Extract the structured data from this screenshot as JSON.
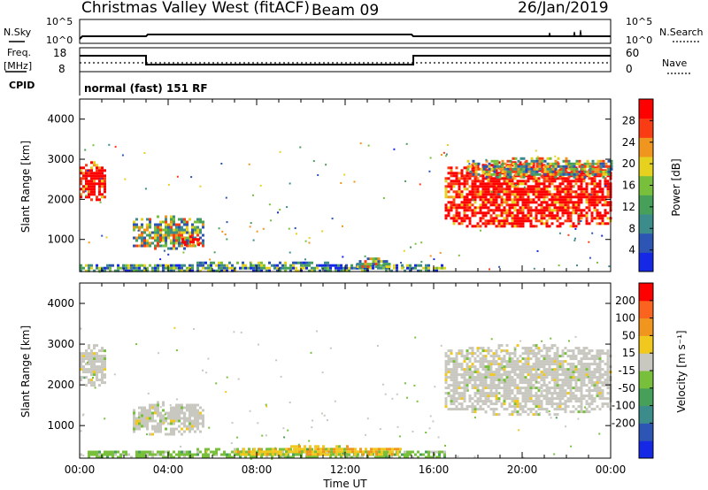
{
  "header": {
    "station": "Christmas Valley West (fitACF)",
    "beam": "Beam 09",
    "date": "26/Jan/2019"
  },
  "summary_panels": {
    "nsky_label": "N.Sky",
    "nsky_ticks": [
      "10^5",
      "10^0"
    ],
    "nsearch_label": "N.Search",
    "nsearch_ticks": [
      "10^5",
      "10^0"
    ],
    "freq_label_1": "Freq.",
    "freq_label_2": "[MHz]",
    "freq_ticks": [
      "18",
      "8"
    ],
    "nave_label": "Nave",
    "nave_ticks": [
      "60",
      "0"
    ],
    "cpid_label": "CPID",
    "cpid_value": "normal (fast) 151 RF"
  },
  "chart_data": [
    {
      "type": "heatmap",
      "name": "power",
      "xlabel": "",
      "ylabel": "Slant Range [km]",
      "x_range_hours": [
        0,
        24
      ],
      "y_range_km": [
        200,
        4500
      ],
      "yticks": [
        1000,
        2000,
        3000,
        4000
      ],
      "colorbar_label": "Power [dB]",
      "colorbar_ticks": [
        4,
        8,
        12,
        16,
        20,
        24,
        28
      ],
      "colorbar_range": [
        0,
        32
      ],
      "colorbar_colors": [
        "#1428e6",
        "#2d55b4",
        "#3c8c8c",
        "#46a05a",
        "#78c03c",
        "#e6d21e",
        "#f0961e",
        "#fa3c14",
        "#ff0000"
      ],
      "regions": [
        {
          "x": [
            0.0,
            1.1
          ],
          "y": [
            2000,
            2950
          ],
          "level": "high"
        },
        {
          "x": [
            2.4,
            5.6
          ],
          "y": [
            800,
            1600
          ],
          "level": "mid"
        },
        {
          "x": [
            4.6,
            5.4
          ],
          "y": [
            850,
            1100
          ],
          "level": "high"
        },
        {
          "x": [
            0.0,
            16.5
          ],
          "y": [
            220,
            450
          ],
          "level": "low"
        },
        {
          "x": [
            12.5,
            14.0
          ],
          "y": [
            300,
            550
          ],
          "level": "mid"
        },
        {
          "x": [
            16.5,
            24.0
          ],
          "y": [
            1300,
            2950
          ],
          "level": "high"
        },
        {
          "x": [
            17.5,
            24.0
          ],
          "y": [
            2550,
            3050
          ],
          "level": "mid"
        }
      ]
    },
    {
      "type": "heatmap",
      "name": "velocity",
      "xlabel": "Time UT",
      "ylabel": "Slant Range [km]",
      "x_range_hours": [
        0,
        24
      ],
      "xticks": [
        "00:00",
        "04:00",
        "08:00",
        "12:00",
        "16:00",
        "20:00",
        "00:00"
      ],
      "y_range_km": [
        200,
        4500
      ],
      "yticks": [
        1000,
        2000,
        3000,
        4000
      ],
      "colorbar_label": "Velocity [m s⁻¹]",
      "colorbar_ticks": [
        200,
        100,
        50,
        15,
        -15,
        -50,
        -100,
        -200
      ],
      "colorbar_colors": [
        "#1428e6",
        "#2d55b4",
        "#3c8c8c",
        "#46a05a",
        "#78c03c",
        "#c8c8c0",
        "#f0c81e",
        "#f0961e",
        "#fa641e",
        "#ff0000"
      ],
      "regions": [
        {
          "x": [
            0.0,
            1.1
          ],
          "y": [
            2000,
            3000
          ],
          "level": "ground"
        },
        {
          "x": [
            2.4,
            5.6
          ],
          "y": [
            800,
            1600
          ],
          "level": "ground"
        },
        {
          "x": [
            0.0,
            16.5
          ],
          "y": [
            220,
            450
          ],
          "level": "green"
        },
        {
          "x": [
            7.0,
            14.5
          ],
          "y": [
            280,
            520
          ],
          "level": "orange"
        },
        {
          "x": [
            16.5,
            24.0
          ],
          "y": [
            1300,
            3000
          ],
          "level": "ground"
        }
      ]
    }
  ]
}
